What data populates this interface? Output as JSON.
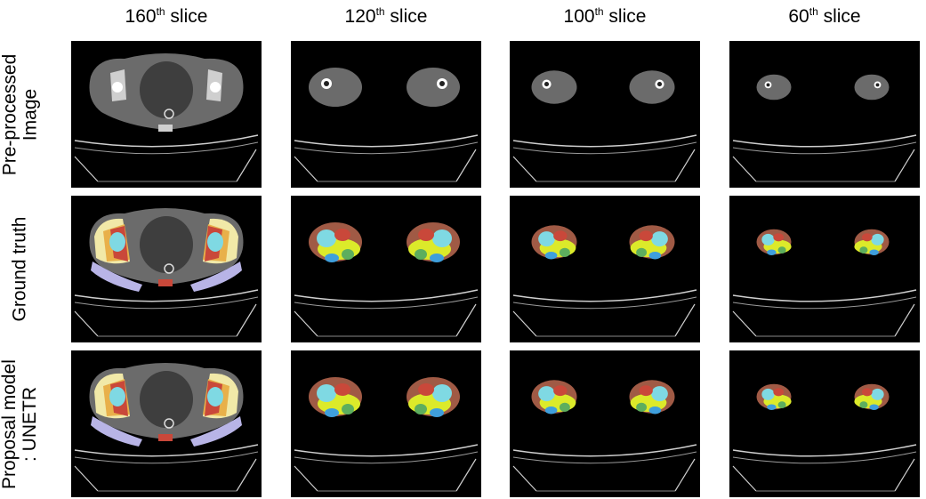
{
  "columns": [
    {
      "num": "160",
      "sup": "th",
      "text": " slice"
    },
    {
      "num": "120",
      "sup": "th",
      "text": " slice"
    },
    {
      "num": "100",
      "sup": "th",
      "text": " slice"
    },
    {
      "num": "60",
      "sup": "th",
      "text": " slice"
    }
  ],
  "rows": [
    {
      "line1": "Pre-processed",
      "line2": "Image"
    },
    {
      "line1": "Ground truth",
      "line2": ""
    },
    {
      "line1": "Proposal model",
      "line2": ": UNETR"
    }
  ],
  "colors": {
    "background": "#000000",
    "ct_tissue": "#6b6b6b",
    "bone": "#ffffff",
    "seg_yellow": "#dcea2a",
    "seg_red": "#c9483a",
    "seg_cyan": "#7fd9e3",
    "seg_lavender": "#b8b4e6",
    "seg_green": "#5dae5e",
    "seg_blue": "#3f9fdc",
    "seg_cream": "#f1e9a8",
    "seg_orange": "#e8b04a",
    "seg_brown": "#a05a45"
  }
}
